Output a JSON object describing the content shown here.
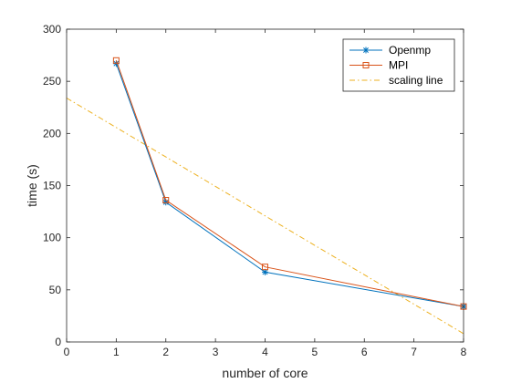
{
  "chart_data": {
    "type": "line",
    "xlabel": "number of core",
    "ylabel": "time (s)",
    "xlim": [
      0,
      8
    ],
    "ylim": [
      0,
      300
    ],
    "xticks": [
      "0",
      "1",
      "2",
      "3",
      "4",
      "5",
      "6",
      "7",
      "8"
    ],
    "yticks": [
      "0",
      "50",
      "100",
      "150",
      "200",
      "250",
      "300"
    ],
    "grid": false,
    "legend_position": "top-right",
    "series": [
      {
        "name": "Openmp",
        "color": "#0072BD",
        "marker": "asterisk",
        "line": "solid",
        "x": [
          1,
          2,
          4,
          8
        ],
        "y": [
          267,
          134,
          67,
          34
        ]
      },
      {
        "name": "MPI",
        "color": "#D95319",
        "marker": "square",
        "line": "solid",
        "x": [
          1,
          2,
          4,
          8
        ],
        "y": [
          270,
          136,
          72,
          34
        ]
      },
      {
        "name": "scaling line",
        "color": "#EDB120",
        "marker": "none",
        "line": "dash-dot",
        "x": [
          0,
          8
        ],
        "y": [
          234,
          8
        ]
      }
    ]
  }
}
